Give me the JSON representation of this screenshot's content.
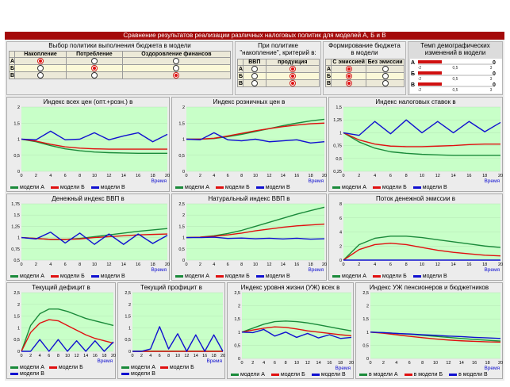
{
  "title": "Сравнение результатов реализации различных налоговых политик для моделей А, Б и В",
  "rowLetters": [
    "А",
    "Б",
    "В"
  ],
  "policy": {
    "title": "Выбор политики выполнения бюджета в модели",
    "cols": [
      "Накопление",
      "Потребление",
      "Оздоровление финансов"
    ],
    "selected": [
      0,
      1,
      2
    ]
  },
  "criterion": {
    "title": "При политике \"накопление\", критерий в:",
    "cols": [
      "ВВП",
      "продукция"
    ],
    "selected": [
      1,
      1,
      1
    ]
  },
  "budget": {
    "title": "Формирование бюджета в модели",
    "cols": [
      "С эмиссией",
      "Без эмиссии"
    ],
    "selected": [
      0,
      0,
      0
    ]
  },
  "demog": {
    "title": "Темп демографических изменений в модели",
    "ticks": [
      "-2",
      "0,5",
      "3"
    ],
    "values": [
      "0",
      "0",
      "0"
    ]
  },
  "colors": {
    "A": "#1a8a3a",
    "B": "#e01010",
    "C": "#1010d0",
    "plot": "#c8ffc8",
    "title": "#a40a0a"
  },
  "legend": {
    "A": "модели А",
    "B": "модели Б",
    "C": "модели В"
  },
  "legend_alt": {
    "A": "в модели А",
    "B": "в модели Б",
    "C": "в модели В"
  },
  "time_label": "Время",
  "charts": {
    "c1": {
      "title": "Индекс всех цен (опт.+розн.) в",
      "yt": [
        "2",
        "1,5",
        "1",
        "0,5",
        "0"
      ],
      "xt": [
        "0",
        "2",
        "4",
        "6",
        "8",
        "10",
        "12",
        "14",
        "16",
        "18",
        "20"
      ]
    },
    "c2": {
      "title": "Индекс розничных цен в",
      "yt": [
        "2",
        "1,5",
        "1",
        "0,5",
        "0"
      ],
      "xt": [
        "0",
        "2",
        "4",
        "6",
        "8",
        "10",
        "12",
        "14",
        "16",
        "18",
        "20"
      ]
    },
    "c3": {
      "title": "Индекс налоговых ставок в",
      "yt": [
        "1,5",
        "1,25",
        "1",
        "0,75",
        "0,5",
        "0,25"
      ],
      "xt": [
        "0",
        "2",
        "4",
        "6",
        "8",
        "10",
        "12",
        "14",
        "16",
        "18",
        "20"
      ]
    },
    "c4": {
      "title": "Денежный индекс ВВП в",
      "yt": [
        "1,75",
        "1,5",
        "1,25",
        "1",
        "0,75",
        "0,5"
      ],
      "xt": [
        "0",
        "2",
        "4",
        "6",
        "8",
        "10",
        "12",
        "14",
        "16",
        "18",
        "20"
      ]
    },
    "c5": {
      "title": "Натуральный индекс ВВП в",
      "yt": [
        "2,5",
        "2",
        "1,5",
        "1",
        "0,5",
        "0"
      ],
      "xt": [
        "0",
        "2",
        "4",
        "6",
        "8",
        "10",
        "12",
        "14",
        "16",
        "18",
        "20"
      ]
    },
    "c6": {
      "title": "Поток денежной эмиссии в",
      "yt": [
        "8",
        "6",
        "4",
        "2",
        "0"
      ],
      "xt": [
        "0",
        "2",
        "4",
        "6",
        "8",
        "10",
        "12",
        "14",
        "16",
        "18",
        "20"
      ]
    },
    "c7": {
      "title": "Текущий дефицит в",
      "yt": [
        "2,5",
        "2",
        "1,5",
        "1",
        "0,5",
        "0"
      ],
      "xt": [
        "0",
        "2",
        "4",
        "6",
        "8",
        "10",
        "12",
        "14",
        "16",
        "18",
        "20"
      ]
    },
    "c8": {
      "title": "Текущий профицит в",
      "yt": [
        "2,5",
        "2",
        "1,5",
        "1",
        "0,5",
        "0"
      ],
      "xt": [
        "0",
        "2",
        "4",
        "6",
        "8",
        "10",
        "12",
        "14",
        "16",
        "18",
        "20"
      ]
    },
    "c9": {
      "title": "Индекс уровня жизни (УЖ) всех в",
      "yt": [
        "2,5",
        "2",
        "1,5",
        "1",
        "0,5",
        "0"
      ],
      "xt": [
        "0",
        "2",
        "4",
        "6",
        "8",
        "10",
        "12",
        "14",
        "16",
        "18",
        "20"
      ]
    },
    "c10": {
      "title": "Индекс УЖ пенсионеров и бюджетников",
      "yt": [
        "2,5",
        "2",
        "1,5",
        "1",
        "0,5",
        "0"
      ],
      "xt": [
        "0",
        "2",
        "4",
        "6",
        "8",
        "10",
        "12",
        "14",
        "16",
        "18",
        "20"
      ]
    }
  },
  "chart_data": [
    {
      "type": "line",
      "title": "Индекс всех цен (опт.+розн.) в",
      "ylim": [
        0,
        2
      ],
      "x": [
        0,
        2,
        4,
        6,
        8,
        10,
        12,
        14,
        16,
        18,
        20
      ],
      "series": [
        {
          "name": "модели А",
          "values": [
            1,
            0.92,
            0.8,
            0.7,
            0.64,
            0.6,
            0.58,
            0.57,
            0.56,
            0.56,
            0.56
          ]
        },
        {
          "name": "модели Б",
          "values": [
            1,
            0.94,
            0.84,
            0.76,
            0.72,
            0.7,
            0.69,
            0.69,
            0.69,
            0.69,
            0.69
          ]
        },
        {
          "name": "модели В",
          "values": [
            1,
            0.98,
            1.25,
            0.98,
            1,
            1.2,
            0.98,
            1.1,
            1.2,
            0.92,
            1.15
          ]
        }
      ]
    },
    {
      "type": "line",
      "title": "Индекс розничных цен в",
      "ylim": [
        0,
        2
      ],
      "x": [
        0,
        2,
        4,
        6,
        8,
        10,
        12,
        14,
        16,
        18,
        20
      ],
      "series": [
        {
          "name": "модели А",
          "values": [
            1,
            1.0,
            1.02,
            1.08,
            1.15,
            1.24,
            1.33,
            1.42,
            1.5,
            1.57,
            1.62
          ]
        },
        {
          "name": "модели Б",
          "values": [
            1,
            1.0,
            1.03,
            1.1,
            1.18,
            1.26,
            1.33,
            1.39,
            1.44,
            1.48,
            1.5
          ]
        },
        {
          "name": "модели В",
          "values": [
            1,
            0.98,
            1.2,
            0.98,
            0.95,
            1.0,
            0.92,
            0.95,
            0.98,
            0.88,
            0.92
          ]
        }
      ]
    },
    {
      "type": "line",
      "title": "Индекс налоговых ставок в",
      "ylim": [
        0.25,
        1.5
      ],
      "x": [
        0,
        2,
        4,
        6,
        8,
        10,
        12,
        14,
        16,
        18,
        20
      ],
      "series": [
        {
          "name": "модели А",
          "values": [
            1,
            0.82,
            0.7,
            0.63,
            0.6,
            0.58,
            0.57,
            0.56,
            0.56,
            0.56,
            0.56
          ]
        },
        {
          "name": "модели Б",
          "values": [
            1,
            0.86,
            0.78,
            0.74,
            0.73,
            0.73,
            0.74,
            0.75,
            0.77,
            0.78,
            0.78
          ]
        },
        {
          "name": "модели В",
          "values": [
            1,
            0.95,
            1.22,
            0.98,
            1.25,
            1.0,
            1.22,
            1.0,
            1.22,
            1.02,
            1.2
          ]
        }
      ]
    },
    {
      "type": "line",
      "title": "Денежный индекс ВВП в",
      "ylim": [
        0.5,
        1.75
      ],
      "x": [
        0,
        2,
        4,
        6,
        8,
        10,
        12,
        14,
        16,
        18,
        20
      ],
      "series": [
        {
          "name": "модели А",
          "values": [
            1,
            0.98,
            0.96,
            0.96,
            0.98,
            1.02,
            1.06,
            1.1,
            1.14,
            1.17,
            1.2
          ]
        },
        {
          "name": "модели Б",
          "values": [
            1,
            0.98,
            0.96,
            0.96,
            0.97,
            1.0,
            1.02,
            1.04,
            1.06,
            1.07,
            1.08
          ]
        },
        {
          "name": "модели В",
          "values": [
            1,
            0.97,
            1.12,
            0.88,
            1.1,
            0.85,
            1.08,
            0.85,
            1.08,
            0.87,
            1.05
          ]
        }
      ]
    },
    {
      "type": "line",
      "title": "Натуральный индекс ВВП в",
      "ylim": [
        0,
        2.5
      ],
      "x": [
        0,
        2,
        4,
        6,
        8,
        10,
        12,
        14,
        16,
        18,
        20
      ],
      "series": [
        {
          "name": "модели А",
          "values": [
            1,
            1.02,
            1.08,
            1.18,
            1.32,
            1.5,
            1.68,
            1.86,
            2.04,
            2.2,
            2.35
          ]
        },
        {
          "name": "модели Б",
          "values": [
            1,
            1.02,
            1.06,
            1.12,
            1.2,
            1.3,
            1.38,
            1.46,
            1.52,
            1.56,
            1.6
          ]
        },
        {
          "name": "модели В",
          "values": [
            1,
            1.0,
            1.02,
            0.96,
            0.98,
            0.95,
            0.97,
            0.94,
            0.97,
            0.93,
            0.95
          ]
        }
      ]
    },
    {
      "type": "line",
      "title": "Поток денежной эмиссии в",
      "ylim": [
        0,
        8
      ],
      "x": [
        0,
        2,
        4,
        6,
        8,
        10,
        12,
        14,
        16,
        18,
        20
      ],
      "series": [
        {
          "name": "модели А",
          "values": [
            0,
            2.2,
            3.1,
            3.4,
            3.4,
            3.2,
            2.9,
            2.6,
            2.3,
            2.0,
            1.8
          ]
        },
        {
          "name": "модели Б",
          "values": [
            0,
            1.5,
            2.2,
            2.4,
            2.2,
            1.8,
            1.4,
            1.1,
            0.9,
            0.7,
            0.6
          ]
        },
        {
          "name": "модели В",
          "values": [
            0,
            0,
            0,
            0,
            0,
            0,
            0,
            0,
            0,
            0,
            0
          ]
        }
      ]
    },
    {
      "type": "line",
      "title": "Текущий дефицит в",
      "ylim": [
        0,
        2.5
      ],
      "x": [
        0,
        2,
        4,
        6,
        8,
        10,
        12,
        14,
        16,
        18,
        20
      ],
      "series": [
        {
          "name": "модели А",
          "values": [
            0,
            1.1,
            1.6,
            1.8,
            1.8,
            1.7,
            1.55,
            1.4,
            1.3,
            1.2,
            1.1
          ]
        },
        {
          "name": "модели Б",
          "values": [
            0,
            0.8,
            1.2,
            1.35,
            1.3,
            1.1,
            0.9,
            0.7,
            0.55,
            0.45,
            0.35
          ]
        },
        {
          "name": "модели В",
          "values": [
            0,
            0,
            0.5,
            0,
            0.5,
            0,
            0.45,
            0,
            0.45,
            0,
            0.4
          ]
        }
      ]
    },
    {
      "type": "line",
      "title": "Текущий профицит в",
      "ylim": [
        0,
        2.5
      ],
      "x": [
        0,
        2,
        4,
        6,
        8,
        10,
        12,
        14,
        16,
        18,
        20
      ],
      "series": [
        {
          "name": "модели А",
          "values": [
            0,
            0,
            0,
            0,
            0,
            0,
            0,
            0,
            0,
            0,
            0
          ]
        },
        {
          "name": "модели Б",
          "values": [
            0,
            0,
            0,
            0,
            0,
            0,
            0,
            0,
            0,
            0,
            0
          ]
        },
        {
          "name": "модели В",
          "values": [
            0,
            0,
            0.1,
            1.05,
            0.1,
            0.75,
            0,
            0.7,
            0,
            0.7,
            0
          ]
        }
      ]
    },
    {
      "type": "line",
      "title": "Индекс уровня жизни (УЖ) всех в",
      "ylim": [
        0,
        2.5
      ],
      "x": [
        0,
        2,
        4,
        6,
        8,
        10,
        12,
        14,
        16,
        18,
        20
      ],
      "series": [
        {
          "name": "модели А",
          "values": [
            1,
            1.15,
            1.3,
            1.4,
            1.42,
            1.4,
            1.35,
            1.28,
            1.2,
            1.12,
            1.05
          ]
        },
        {
          "name": "модели Б",
          "values": [
            1,
            1.08,
            1.15,
            1.2,
            1.18,
            1.12,
            1.05,
            1.0,
            0.95,
            0.9,
            0.86
          ]
        },
        {
          "name": "модели В",
          "values": [
            1,
            0.98,
            1.1,
            0.85,
            1.0,
            0.8,
            0.95,
            0.78,
            0.9,
            0.76,
            0.8
          ]
        }
      ]
    },
    {
      "type": "line",
      "title": "Индекс УЖ пенсионеров и бюджетников",
      "ylim": [
        0,
        2.5
      ],
      "x": [
        0,
        2,
        4,
        6,
        8,
        10,
        12,
        14,
        16,
        18,
        20
      ],
      "series": [
        {
          "name": "в модели А",
          "values": [
            1,
            0.98,
            0.95,
            0.92,
            0.88,
            0.84,
            0.8,
            0.76,
            0.72,
            0.69,
            0.66
          ]
        },
        {
          "name": "в модели Б",
          "values": [
            1,
            0.96,
            0.9,
            0.84,
            0.79,
            0.74,
            0.7,
            0.67,
            0.65,
            0.63,
            0.62
          ]
        },
        {
          "name": "в модели В",
          "values": [
            1,
            0.98,
            0.95,
            0.93,
            0.9,
            0.88,
            0.85,
            0.83,
            0.8,
            0.78,
            0.76
          ]
        }
      ]
    }
  ]
}
